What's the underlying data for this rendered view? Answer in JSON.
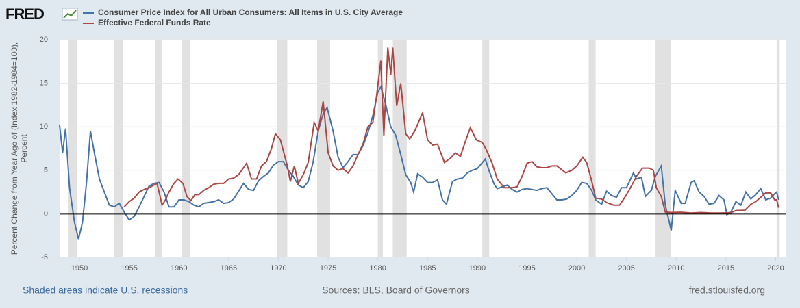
{
  "logo": "FRED",
  "chart_data": {
    "type": "line",
    "ylabel": [
      "Percent Change from Year Ago of (Index 1982-1984=100),",
      "Percent"
    ],
    "xlim": [
      1948,
      2021
    ],
    "xticks": [
      1950,
      1955,
      1960,
      1965,
      1970,
      1975,
      1980,
      1985,
      1990,
      1995,
      2000,
      2005,
      2010,
      2015,
      2020
    ],
    "ylim": [
      -5,
      20
    ],
    "yticks": [
      -5,
      0,
      5,
      10,
      15,
      20
    ],
    "grid": true,
    "zero_line": true,
    "recession_color": "#e1e1e1",
    "recessions": [
      [
        1948.9,
        1949.8
      ],
      [
        1953.5,
        1954.4
      ],
      [
        1957.6,
        1958.3
      ],
      [
        1960.3,
        1961.1
      ],
      [
        1969.9,
        1970.9
      ],
      [
        1973.9,
        1975.2
      ],
      [
        1980.0,
        1980.5
      ],
      [
        1981.5,
        1982.9
      ],
      [
        1990.5,
        1991.2
      ],
      [
        2001.2,
        2001.9
      ],
      [
        2007.9,
        2009.5
      ],
      [
        2020.1,
        2020.4
      ]
    ],
    "series": [
      {
        "name": "Consumer Price Index for All Urban Consumers: All Items in U.S. City Average",
        "color": "#4572a7",
        "x": [
          1948.0,
          1948.3,
          1948.6,
          1949.0,
          1949.5,
          1949.9,
          1950.3,
          1950.7,
          1951.1,
          1951.5,
          1952.0,
          1952.5,
          1953.0,
          1953.5,
          1954.0,
          1954.5,
          1955.0,
          1955.5,
          1956.0,
          1956.5,
          1957.0,
          1957.5,
          1958.0,
          1958.5,
          1959.0,
          1959.5,
          1960.0,
          1960.5,
          1961.0,
          1961.5,
          1962.0,
          1962.5,
          1963.0,
          1963.5,
          1964.0,
          1964.5,
          1965.0,
          1965.5,
          1966.0,
          1966.5,
          1967.0,
          1967.5,
          1968.0,
          1968.5,
          1969.0,
          1969.5,
          1970.0,
          1970.5,
          1971.0,
          1971.5,
          1972.0,
          1972.5,
          1973.0,
          1973.5,
          1974.0,
          1974.5,
          1974.9,
          1975.5,
          1976.0,
          1976.5,
          1977.0,
          1977.5,
          1978.0,
          1978.5,
          1979.0,
          1979.5,
          1980.0,
          1980.3,
          1980.8,
          1981.3,
          1981.8,
          1982.3,
          1982.8,
          1983.3,
          1983.6,
          1984.0,
          1984.5,
          1985.0,
          1985.5,
          1986.0,
          1986.5,
          1986.9,
          1987.5,
          1988.0,
          1988.5,
          1989.0,
          1989.5,
          1990.0,
          1990.8,
          1991.2,
          1991.7,
          1992.0,
          1992.5,
          1993.0,
          1993.5,
          1994.0,
          1994.5,
          1995.0,
          1995.5,
          1996.0,
          1996.5,
          1997.0,
          1997.5,
          1998.0,
          1998.5,
          1999.0,
          1999.5,
          2000.0,
          2000.5,
          2001.0,
          2001.5,
          2001.9,
          2002.5,
          2003.0,
          2003.5,
          2004.0,
          2004.5,
          2005.0,
          2005.7,
          2006.0,
          2006.5,
          2006.9,
          2007.5,
          2007.9,
          2008.5,
          2008.9,
          2009.5,
          2009.9,
          2010.5,
          2010.9,
          2011.5,
          2011.8,
          2012.3,
          2012.8,
          2013.3,
          2013.8,
          2014.3,
          2014.8,
          2015.1,
          2015.5,
          2016.0,
          2016.5,
          2017.0,
          2017.5,
          2018.0,
          2018.5,
          2019.0,
          2019.5,
          2019.9,
          2020.1,
          2020.3
        ],
        "values": [
          10.2,
          7.0,
          9.8,
          3.0,
          -1.0,
          -2.9,
          -1.0,
          3.5,
          9.5,
          7.0,
          4.0,
          2.5,
          1.0,
          0.8,
          1.2,
          0.2,
          -0.7,
          -0.3,
          0.8,
          2.0,
          3.2,
          3.5,
          3.6,
          2.5,
          0.8,
          0.8,
          1.6,
          1.6,
          1.4,
          1.0,
          0.8,
          1.2,
          1.3,
          1.4,
          1.6,
          1.2,
          1.3,
          1.7,
          2.6,
          3.5,
          2.8,
          2.7,
          3.8,
          4.3,
          4.7,
          5.6,
          6.0,
          6.0,
          5.0,
          4.3,
          3.3,
          3.0,
          3.7,
          6.0,
          9.5,
          11.5,
          12.2,
          9.5,
          6.5,
          5.3,
          6.0,
          6.8,
          6.8,
          7.8,
          9.3,
          11.3,
          14.0,
          14.6,
          12.5,
          10.0,
          9.0,
          6.8,
          4.5,
          3.6,
          2.5,
          4.6,
          4.2,
          3.6,
          3.6,
          3.9,
          1.6,
          1.1,
          3.7,
          4.0,
          4.1,
          4.7,
          5.0,
          5.2,
          6.3,
          4.9,
          3.4,
          2.9,
          3.1,
          3.3,
          2.8,
          2.5,
          2.8,
          2.9,
          2.8,
          2.7,
          2.9,
          3.0,
          2.3,
          1.6,
          1.6,
          1.7,
          2.1,
          2.7,
          3.6,
          3.5,
          2.7,
          1.6,
          1.1,
          2.6,
          2.1,
          1.9,
          3.0,
          3.0,
          4.7,
          4.0,
          4.2,
          2.0,
          2.7,
          4.3,
          5.5,
          1.0,
          -1.9,
          2.7,
          1.2,
          1.2,
          3.6,
          3.8,
          2.5,
          2.0,
          1.1,
          1.2,
          2.1,
          1.6,
          -0.1,
          0.2,
          1.4,
          1.0,
          2.5,
          1.7,
          2.2,
          2.9,
          1.6,
          1.8,
          2.3,
          2.5,
          1.6
        ]
      },
      {
        "name": "Effective Federal Funds Rate",
        "color": "#aa4643",
        "x": [
          1954.5,
          1955.0,
          1955.5,
          1956.0,
          1956.5,
          1957.0,
          1957.8,
          1958.3,
          1958.6,
          1959.0,
          1959.5,
          1959.9,
          1960.4,
          1960.8,
          1961.2,
          1961.6,
          1962.0,
          1962.5,
          1963.0,
          1963.5,
          1964.0,
          1964.5,
          1965.0,
          1965.5,
          1966.0,
          1966.8,
          1967.3,
          1967.8,
          1968.3,
          1968.8,
          1969.3,
          1969.7,
          1970.2,
          1970.9,
          1971.2,
          1971.6,
          1972.0,
          1972.5,
          1973.0,
          1973.6,
          1974.0,
          1974.5,
          1975.0,
          1975.5,
          1976.0,
          1976.5,
          1977.0,
          1977.5,
          1978.0,
          1978.5,
          1979.0,
          1979.5,
          1979.9,
          1980.3,
          1980.6,
          1981.0,
          1981.3,
          1981.5,
          1981.9,
          1982.3,
          1982.8,
          1983.2,
          1983.7,
          1984.5,
          1985.0,
          1985.5,
          1986.0,
          1986.7,
          1987.3,
          1987.8,
          1988.3,
          1988.8,
          1989.3,
          1989.9,
          1990.5,
          1990.9,
          1991.5,
          1992.0,
          1992.7,
          1993.5,
          1994.0,
          1994.5,
          1995.0,
          1995.5,
          1996.0,
          1996.5,
          1997.0,
          1997.5,
          1998.0,
          1998.9,
          1999.5,
          2000.0,
          2000.6,
          2001.0,
          2001.5,
          2001.9,
          2002.5,
          2003.0,
          2003.7,
          2004.3,
          2004.9,
          2005.5,
          2006.0,
          2006.6,
          2007.3,
          2007.7,
          2008.0,
          2008.5,
          2008.9,
          2009.5,
          2010.5,
          2011.5,
          2012.5,
          2013.5,
          2014.5,
          2015.5,
          2016.0,
          2016.9,
          2017.5,
          2018.0,
          2018.5,
          2019.0,
          2019.5,
          2019.9,
          2020.1,
          2020.3
        ],
        "values": [
          0.8,
          1.4,
          1.8,
          2.5,
          2.8,
          3.0,
          3.5,
          1.0,
          1.5,
          2.5,
          3.5,
          4.0,
          3.5,
          2.0,
          1.5,
          2.2,
          2.2,
          2.7,
          3.0,
          3.4,
          3.5,
          3.5,
          4.0,
          4.1,
          4.5,
          5.8,
          4.0,
          4.0,
          5.5,
          6.0,
          7.5,
          9.2,
          8.5,
          5.5,
          3.7,
          5.5,
          3.5,
          4.5,
          5.9,
          10.5,
          9.5,
          12.9,
          7.0,
          5.5,
          5.0,
          5.2,
          4.7,
          5.5,
          6.8,
          8.0,
          10.0,
          10.5,
          13.8,
          17.6,
          9.0,
          19.1,
          16.0,
          19.1,
          12.4,
          15.0,
          9.2,
          8.6,
          9.5,
          11.6,
          8.5,
          7.9,
          8.0,
          5.9,
          6.4,
          7.0,
          6.6,
          8.3,
          9.9,
          8.5,
          8.2,
          7.4,
          5.8,
          4.0,
          3.0,
          3.0,
          3.1,
          4.3,
          5.8,
          6.0,
          5.4,
          5.3,
          5.3,
          5.5,
          5.5,
          4.7,
          5.0,
          5.5,
          6.5,
          5.9,
          3.8,
          1.8,
          1.7,
          1.3,
          1.0,
          1.0,
          2.0,
          3.2,
          4.3,
          5.25,
          5.25,
          5.0,
          3.0,
          2.0,
          0.2,
          0.15,
          0.18,
          0.09,
          0.15,
          0.09,
          0.09,
          0.13,
          0.38,
          0.4,
          1.1,
          1.4,
          1.9,
          2.4,
          2.4,
          1.6,
          1.6,
          0.7
        ]
      }
    ],
    "footer_left": "Shaded areas indicate U.S. recessions",
    "footer_center": "Sources: BLS, Board of Governors",
    "footer_right": "fred.stlouisfed.org"
  }
}
